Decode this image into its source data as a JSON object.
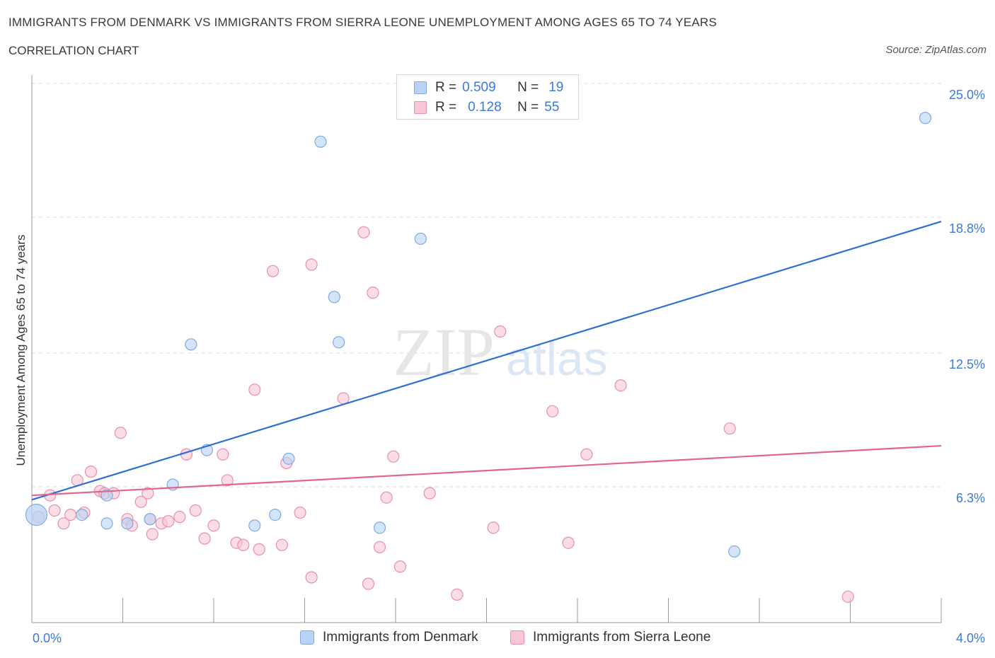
{
  "title": "IMMIGRANTS FROM DENMARK VS IMMIGRANTS FROM SIERRA LEONE UNEMPLOYMENT AMONG AGES 65 TO 74 YEARS",
  "subtitle": "CORRELATION CHART",
  "source": "Source: ZipAtlas.com",
  "watermark": {
    "zip": "ZIP",
    "atlas": "atlas"
  },
  "legend": {
    "rows": [
      {
        "r_label": "R =",
        "r_value": "0.509",
        "n_label": "N =",
        "n_value": "19"
      },
      {
        "r_label": "R =",
        "r_value": "0.128",
        "n_label": "N =",
        "n_value": "55"
      }
    ]
  },
  "colors": {
    "denmark_fill": "#b8d3f5",
    "denmark_stroke": "#7fa9e0",
    "denmark_line": "#2f6fcf",
    "sierra_fill": "#f9c6d5",
    "sierra_stroke": "#e88fab",
    "sierra_line": "#e2658e",
    "tick_label": "#3c7ad6"
  },
  "chart_data": {
    "type": "scatter",
    "title": "IMMIGRANTS FROM DENMARK VS IMMIGRANTS FROM SIERRA LEONE UNEMPLOYMENT AMONG AGES 65 TO 74 YEARS",
    "ylabel": "Unemployment Among Ages 65 to 74 years",
    "xlabel": "",
    "xlim": [
      0,
      4
    ],
    "ylim": [
      0,
      25
    ],
    "x_tick_labels": [
      "0.0%",
      "4.0%"
    ],
    "y_tick_values": [
      6.3,
      12.5,
      18.8,
      25.0
    ],
    "y_tick_labels": [
      "6.3%",
      "12.5%",
      "18.8%",
      "25.0%"
    ],
    "grid": "horizontal dashed",
    "legend_position": "top-center",
    "series": [
      {
        "name": "Immigrants from Denmark",
        "R": 0.509,
        "N": 19,
        "trend": {
          "x": [
            0,
            4
          ],
          "y": [
            5.7,
            18.6
          ]
        },
        "points": [
          [
            0.02,
            5.0,
            "large"
          ],
          [
            0.22,
            5.0
          ],
          [
            0.33,
            5.9
          ],
          [
            0.33,
            4.6
          ],
          [
            0.42,
            4.6
          ],
          [
            0.52,
            4.8
          ],
          [
            0.62,
            6.4
          ],
          [
            0.7,
            12.9
          ],
          [
            0.77,
            8.0
          ],
          [
            0.98,
            4.5
          ],
          [
            1.07,
            5.0
          ],
          [
            1.13,
            7.6
          ],
          [
            1.27,
            22.3
          ],
          [
            1.33,
            15.1
          ],
          [
            1.35,
            13.0
          ],
          [
            1.53,
            4.4
          ],
          [
            1.71,
            17.8
          ],
          [
            3.09,
            3.3
          ],
          [
            3.93,
            23.4
          ]
        ]
      },
      {
        "name": "Immigrants from Sierra Leone",
        "R": 0.128,
        "N": 55,
        "trend": {
          "x": [
            0,
            4
          ],
          "y": [
            5.9,
            8.2
          ]
        },
        "points": [
          [
            0.03,
            4.9
          ],
          [
            0.08,
            5.9
          ],
          [
            0.1,
            5.2
          ],
          [
            0.14,
            4.6
          ],
          [
            0.17,
            5.0
          ],
          [
            0.2,
            6.6
          ],
          [
            0.23,
            5.1
          ],
          [
            0.26,
            7.0
          ],
          [
            0.3,
            6.1
          ],
          [
            0.32,
            6.0
          ],
          [
            0.36,
            6.0
          ],
          [
            0.39,
            8.8
          ],
          [
            0.42,
            4.8
          ],
          [
            0.44,
            4.5
          ],
          [
            0.48,
            5.6
          ],
          [
            0.51,
            6.0
          ],
          [
            0.53,
            4.1
          ],
          [
            0.57,
            4.6
          ],
          [
            0.6,
            4.7
          ],
          [
            0.65,
            4.9
          ],
          [
            0.68,
            7.8
          ],
          [
            0.72,
            5.2
          ],
          [
            0.76,
            3.9
          ],
          [
            0.8,
            4.5
          ],
          [
            0.84,
            7.8
          ],
          [
            0.86,
            6.6
          ],
          [
            0.9,
            3.7
          ],
          [
            0.93,
            3.6
          ],
          [
            0.98,
            10.8
          ],
          [
            1.0,
            3.4
          ],
          [
            1.06,
            16.3
          ],
          [
            1.1,
            3.6
          ],
          [
            1.12,
            7.4
          ],
          [
            1.18,
            5.1
          ],
          [
            1.23,
            2.1
          ],
          [
            1.23,
            16.6
          ],
          [
            1.37,
            10.4
          ],
          [
            1.46,
            18.1
          ],
          [
            1.48,
            1.8
          ],
          [
            1.5,
            15.3
          ],
          [
            1.53,
            3.5
          ],
          [
            1.56,
            5.8
          ],
          [
            1.59,
            7.7
          ],
          [
            1.62,
            2.6
          ],
          [
            1.75,
            6.0
          ],
          [
            1.87,
            1.3
          ],
          [
            2.03,
            4.4
          ],
          [
            2.06,
            13.5
          ],
          [
            2.29,
            9.8
          ],
          [
            2.36,
            3.7
          ],
          [
            2.44,
            7.8
          ],
          [
            2.59,
            11.0
          ],
          [
            3.07,
            9.0
          ],
          [
            3.59,
            1.2
          ],
          [
            0.52,
            4.8
          ]
        ]
      }
    ]
  },
  "bottom_legend": [
    {
      "label": "Immigrants from Denmark"
    },
    {
      "label": "Immigrants from Sierra Leone"
    }
  ]
}
